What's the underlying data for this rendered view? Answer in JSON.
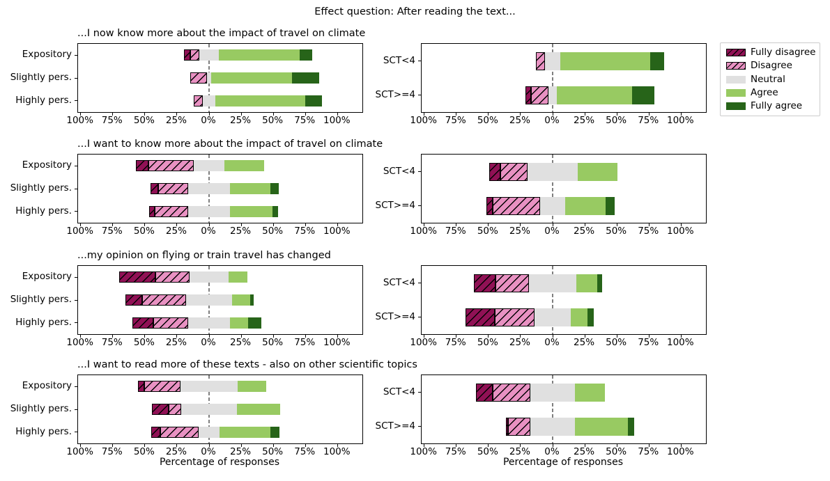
{
  "figure": {
    "suptitle": "Effect question: After reading the text...",
    "xlabel": "Percentage of responses"
  },
  "chart_data": {
    "type": "bar",
    "variant": "horizontal diverging stacked likert, 4 rows x 2 columns of subplots, neutral centered on 0",
    "suptitle": "Effect question: After reading the text...",
    "xlabel": "Percentage of responses",
    "series_order": [
      "Fully disagree",
      "Disagree",
      "Neutral",
      "Agree",
      "Fully agree"
    ],
    "x_tick_labels": [
      "100%",
      "75%",
      "50%",
      "25%",
      "0%",
      "25%",
      "50%",
      "75%",
      "100%"
    ],
    "x_tick_values": [
      -100,
      -75,
      -50,
      -25,
      0,
      25,
      50,
      75,
      100
    ],
    "zero_line": "dashed gray vertical line at 0%",
    "grid": "off",
    "colors": {
      "fully_disagree": "#901155",
      "disagree": "#e891c2",
      "neutral": "#e0e0e0",
      "agree": "#98ca62",
      "fully_agree": "#276419",
      "zero_line": "#7f7f7f",
      "axis_edge": "#000000"
    },
    "legend": {
      "position": "outside upper right",
      "entries": [
        {
          "label": "Fully disagree",
          "color": "#901155",
          "hatched": true
        },
        {
          "label": "Disagree",
          "color": "#e891c2",
          "hatched": true
        },
        {
          "label": "Neutral",
          "color": "#e0e0e0",
          "hatched": false
        },
        {
          "label": "Agree",
          "color": "#98ca62",
          "hatched": false
        },
        {
          "label": "Fully agree",
          "color": "#276419",
          "hatched": false
        }
      ]
    },
    "rows": [
      {
        "title": "...I now know more about the impact of travel on climate",
        "left": {
          "categories": [
            "Expository",
            "Slightly pers.",
            "Highly pers."
          ],
          "values": [
            [
              5,
              7,
              15,
              63,
              10
            ],
            [
              0,
              13,
              3,
              63,
              21
            ],
            [
              0,
              7,
              10,
              70,
              13
            ]
          ]
        },
        "right": {
          "categories": [
            "SCT<4",
            "SCT>=4"
          ],
          "values": [
            [
              0,
              7,
              12,
              70,
              11
            ],
            [
              4,
              14,
              6,
              59,
              17
            ]
          ]
        }
      },
      {
        "title": "...I want to know more about the impact of travel on climate",
        "left": {
          "categories": [
            "Expository",
            "Slightly pers.",
            "Highly pers."
          ],
          "values": [
            [
              10,
              35,
              24,
              31,
              0
            ],
            [
              6,
              23,
              33,
              31,
              7
            ],
            [
              4,
              26,
              33,
              33,
              4
            ]
          ]
        },
        "right": {
          "categories": [
            "SCT<4",
            "SCT>=4"
          ],
          "values": [
            [
              9,
              21,
              39,
              31,
              0
            ],
            [
              5,
              37,
              19,
              32,
              7
            ]
          ]
        }
      },
      {
        "title": "...my opinion on flying or train travel has changed",
        "left": {
          "categories": [
            "Expository",
            "Slightly pers.",
            "Highly pers."
          ],
          "values": [
            [
              28,
              27,
              30,
              15,
              0
            ],
            [
              13,
              34,
              36,
              14,
              3
            ],
            [
              16,
              27,
              33,
              14,
              10
            ]
          ]
        },
        "right": {
          "categories": [
            "SCT<4",
            "SCT>=4"
          ],
          "values": [
            [
              17,
              26,
              37,
              16,
              4
            ],
            [
              23,
              31,
              28,
              13,
              5
            ]
          ]
        }
      },
      {
        "title": "...I want to read more of these texts - also on other scientific topics",
        "left": {
          "categories": [
            "Expository",
            "Slightly pers.",
            "Highly pers."
          ],
          "values": [
            [
              5,
              28,
              45,
              22,
              0
            ],
            [
              13,
              10,
              43,
              34,
              0
            ],
            [
              7,
              30,
              16,
              40,
              7
            ]
          ]
        },
        "right": {
          "categories": [
            "SCT<4",
            "SCT>=4"
          ],
          "values": [
            [
              13,
              29,
              35,
              23,
              0
            ],
            [
              2,
              17,
              35,
              41,
              5
            ]
          ]
        }
      }
    ]
  }
}
